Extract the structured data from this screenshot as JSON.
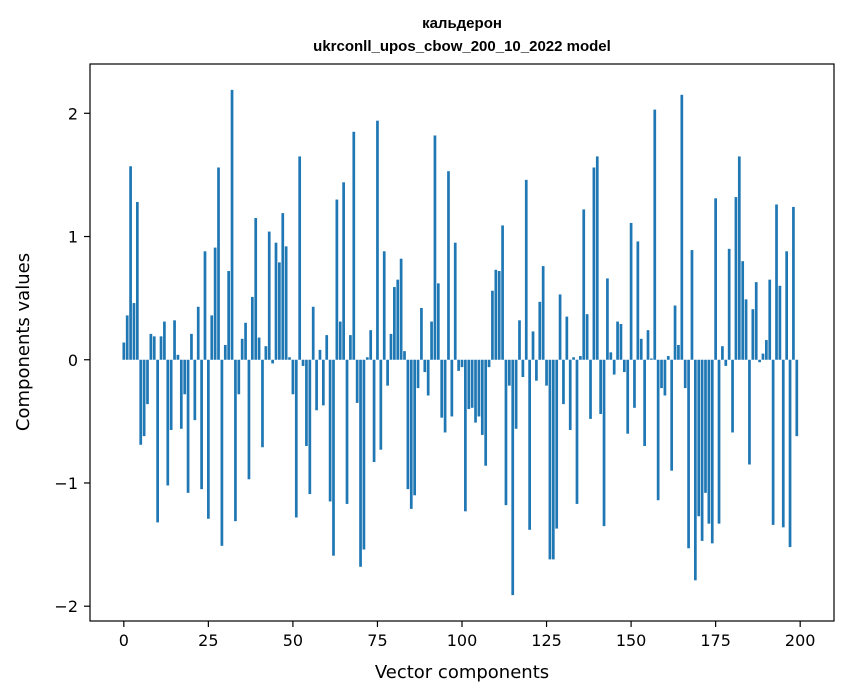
{
  "chart_data": {
    "type": "bar",
    "title": "кальдерон",
    "subtitle": "ukrconll_upos_cbow_200_10_2022 model",
    "xlabel": "Vector components",
    "ylabel": "Components values",
    "xlim": [
      -10,
      210
    ],
    "ylim": [
      -2.12,
      2.4
    ],
    "xticks": [
      0,
      25,
      50,
      75,
      100,
      125,
      150,
      175,
      200
    ],
    "xtick_labels": [
      "0",
      "25",
      "50",
      "75",
      "100",
      "125",
      "150",
      "175",
      "200"
    ],
    "yticks": [
      -2,
      -1,
      0,
      1,
      2
    ],
    "ytick_labels": [
      "−2",
      "−1",
      "0",
      "1",
      "2"
    ],
    "bar_color": "#1f77b4",
    "grid": false,
    "x": [
      0,
      1,
      2,
      3,
      4,
      5,
      6,
      7,
      8,
      9,
      10,
      11,
      12,
      13,
      14,
      15,
      16,
      17,
      18,
      19,
      20,
      21,
      22,
      23,
      24,
      25,
      26,
      27,
      28,
      29,
      30,
      31,
      32,
      33,
      34,
      35,
      36,
      37,
      38,
      39,
      40,
      41,
      42,
      43,
      44,
      45,
      46,
      47,
      48,
      49,
      50,
      51,
      52,
      53,
      54,
      55,
      56,
      57,
      58,
      59,
      60,
      61,
      62,
      63,
      64,
      65,
      66,
      67,
      68,
      69,
      70,
      71,
      72,
      73,
      74,
      75,
      76,
      77,
      78,
      79,
      80,
      81,
      82,
      83,
      84,
      85,
      86,
      87,
      88,
      89,
      90,
      91,
      92,
      93,
      94,
      95,
      96,
      97,
      98,
      99,
      100,
      101,
      102,
      103,
      104,
      105,
      106,
      107,
      108,
      109,
      110,
      111,
      112,
      113,
      114,
      115,
      116,
      117,
      118,
      119,
      120,
      121,
      122,
      123,
      124,
      125,
      126,
      127,
      128,
      129,
      130,
      131,
      132,
      133,
      134,
      135,
      136,
      137,
      138,
      139,
      140,
      141,
      142,
      143,
      144,
      145,
      146,
      147,
      148,
      149,
      150,
      151,
      152,
      153,
      154,
      155,
      156,
      157,
      158,
      159,
      160,
      161,
      162,
      163,
      164,
      165,
      166,
      167,
      168,
      169,
      170,
      171,
      172,
      173,
      174,
      175,
      176,
      177,
      178,
      179,
      180,
      181,
      182,
      183,
      184,
      185,
      186,
      187,
      188,
      189,
      190,
      191,
      192,
      193,
      194,
      195,
      196,
      197,
      198,
      199
    ],
    "values": [
      0.14,
      0.36,
      1.57,
      0.46,
      1.28,
      -0.69,
      -0.62,
      -0.36,
      0.21,
      0.19,
      -1.32,
      0.19,
      0.31,
      -1.02,
      -0.57,
      0.32,
      0.04,
      -0.56,
      -0.28,
      -1.08,
      0.21,
      -0.49,
      0.43,
      -1.05,
      0.88,
      -1.29,
      0.36,
      0.91,
      1.56,
      -1.51,
      0.12,
      0.72,
      2.19,
      -1.31,
      -0.28,
      0.17,
      0.3,
      -0.97,
      0.51,
      1.15,
      0.18,
      -0.71,
      0.11,
      1.04,
      -0.03,
      0.95,
      0.79,
      1.19,
      0.92,
      0.02,
      -0.28,
      -1.28,
      1.65,
      -0.05,
      -0.7,
      -1.09,
      0.43,
      -0.41,
      0.08,
      -0.37,
      0.2,
      -1.15,
      -1.59,
      1.3,
      0.31,
      1.44,
      -1.17,
      0.2,
      1.85,
      -0.35,
      -1.68,
      -1.54,
      0.02,
      0.24,
      -0.83,
      1.94,
      -0.73,
      0.88,
      -0.21,
      0.21,
      0.59,
      0.65,
      0.82,
      0.07,
      -1.05,
      -1.21,
      -1.1,
      -0.23,
      0.42,
      -0.1,
      -0.29,
      0.31,
      1.82,
      0.62,
      -0.47,
      -0.59,
      1.53,
      -0.46,
      0.95,
      -0.09,
      -0.06,
      -1.23,
      -0.4,
      -0.39,
      -0.51,
      -0.46,
      -0.61,
      -0.86,
      -0.06,
      0.56,
      0.73,
      0.72,
      1.09,
      -1.18,
      -0.21,
      -1.91,
      -0.56,
      0.32,
      -0.14,
      1.46,
      -1.38,
      0.23,
      -0.17,
      0.47,
      0.76,
      -0.21,
      -1.62,
      -1.62,
      -1.37,
      0.53,
      -0.36,
      0.35,
      -0.57,
      0.02,
      -1.17,
      0.03,
      1.22,
      0.37,
      -0.48,
      1.56,
      1.65,
      -0.44,
      -1.35,
      0.66,
      0.06,
      -0.12,
      0.31,
      0.29,
      -0.1,
      -0.6,
      1.11,
      -0.39,
      0.96,
      0.17,
      -0.7,
      0.24,
      0.01,
      2.03,
      -1.14,
      -0.23,
      -0.29,
      0.03,
      -0.9,
      0.44,
      0.12,
      2.15,
      -0.23,
      -1.53,
      0.89,
      -1.79,
      -1.27,
      -1.47,
      -1.08,
      -1.33,
      -1.49,
      1.31,
      -1.33,
      0.11,
      -0.05,
      0.9,
      -0.59,
      1.32,
      1.65,
      0.8,
      0.49,
      -0.85,
      0.41,
      0.63,
      -0.02,
      0.05,
      0.16,
      0.65,
      -1.34,
      1.26,
      0.6,
      -1.36,
      0.88,
      -1.52,
      1.24,
      -0.62
    ]
  }
}
